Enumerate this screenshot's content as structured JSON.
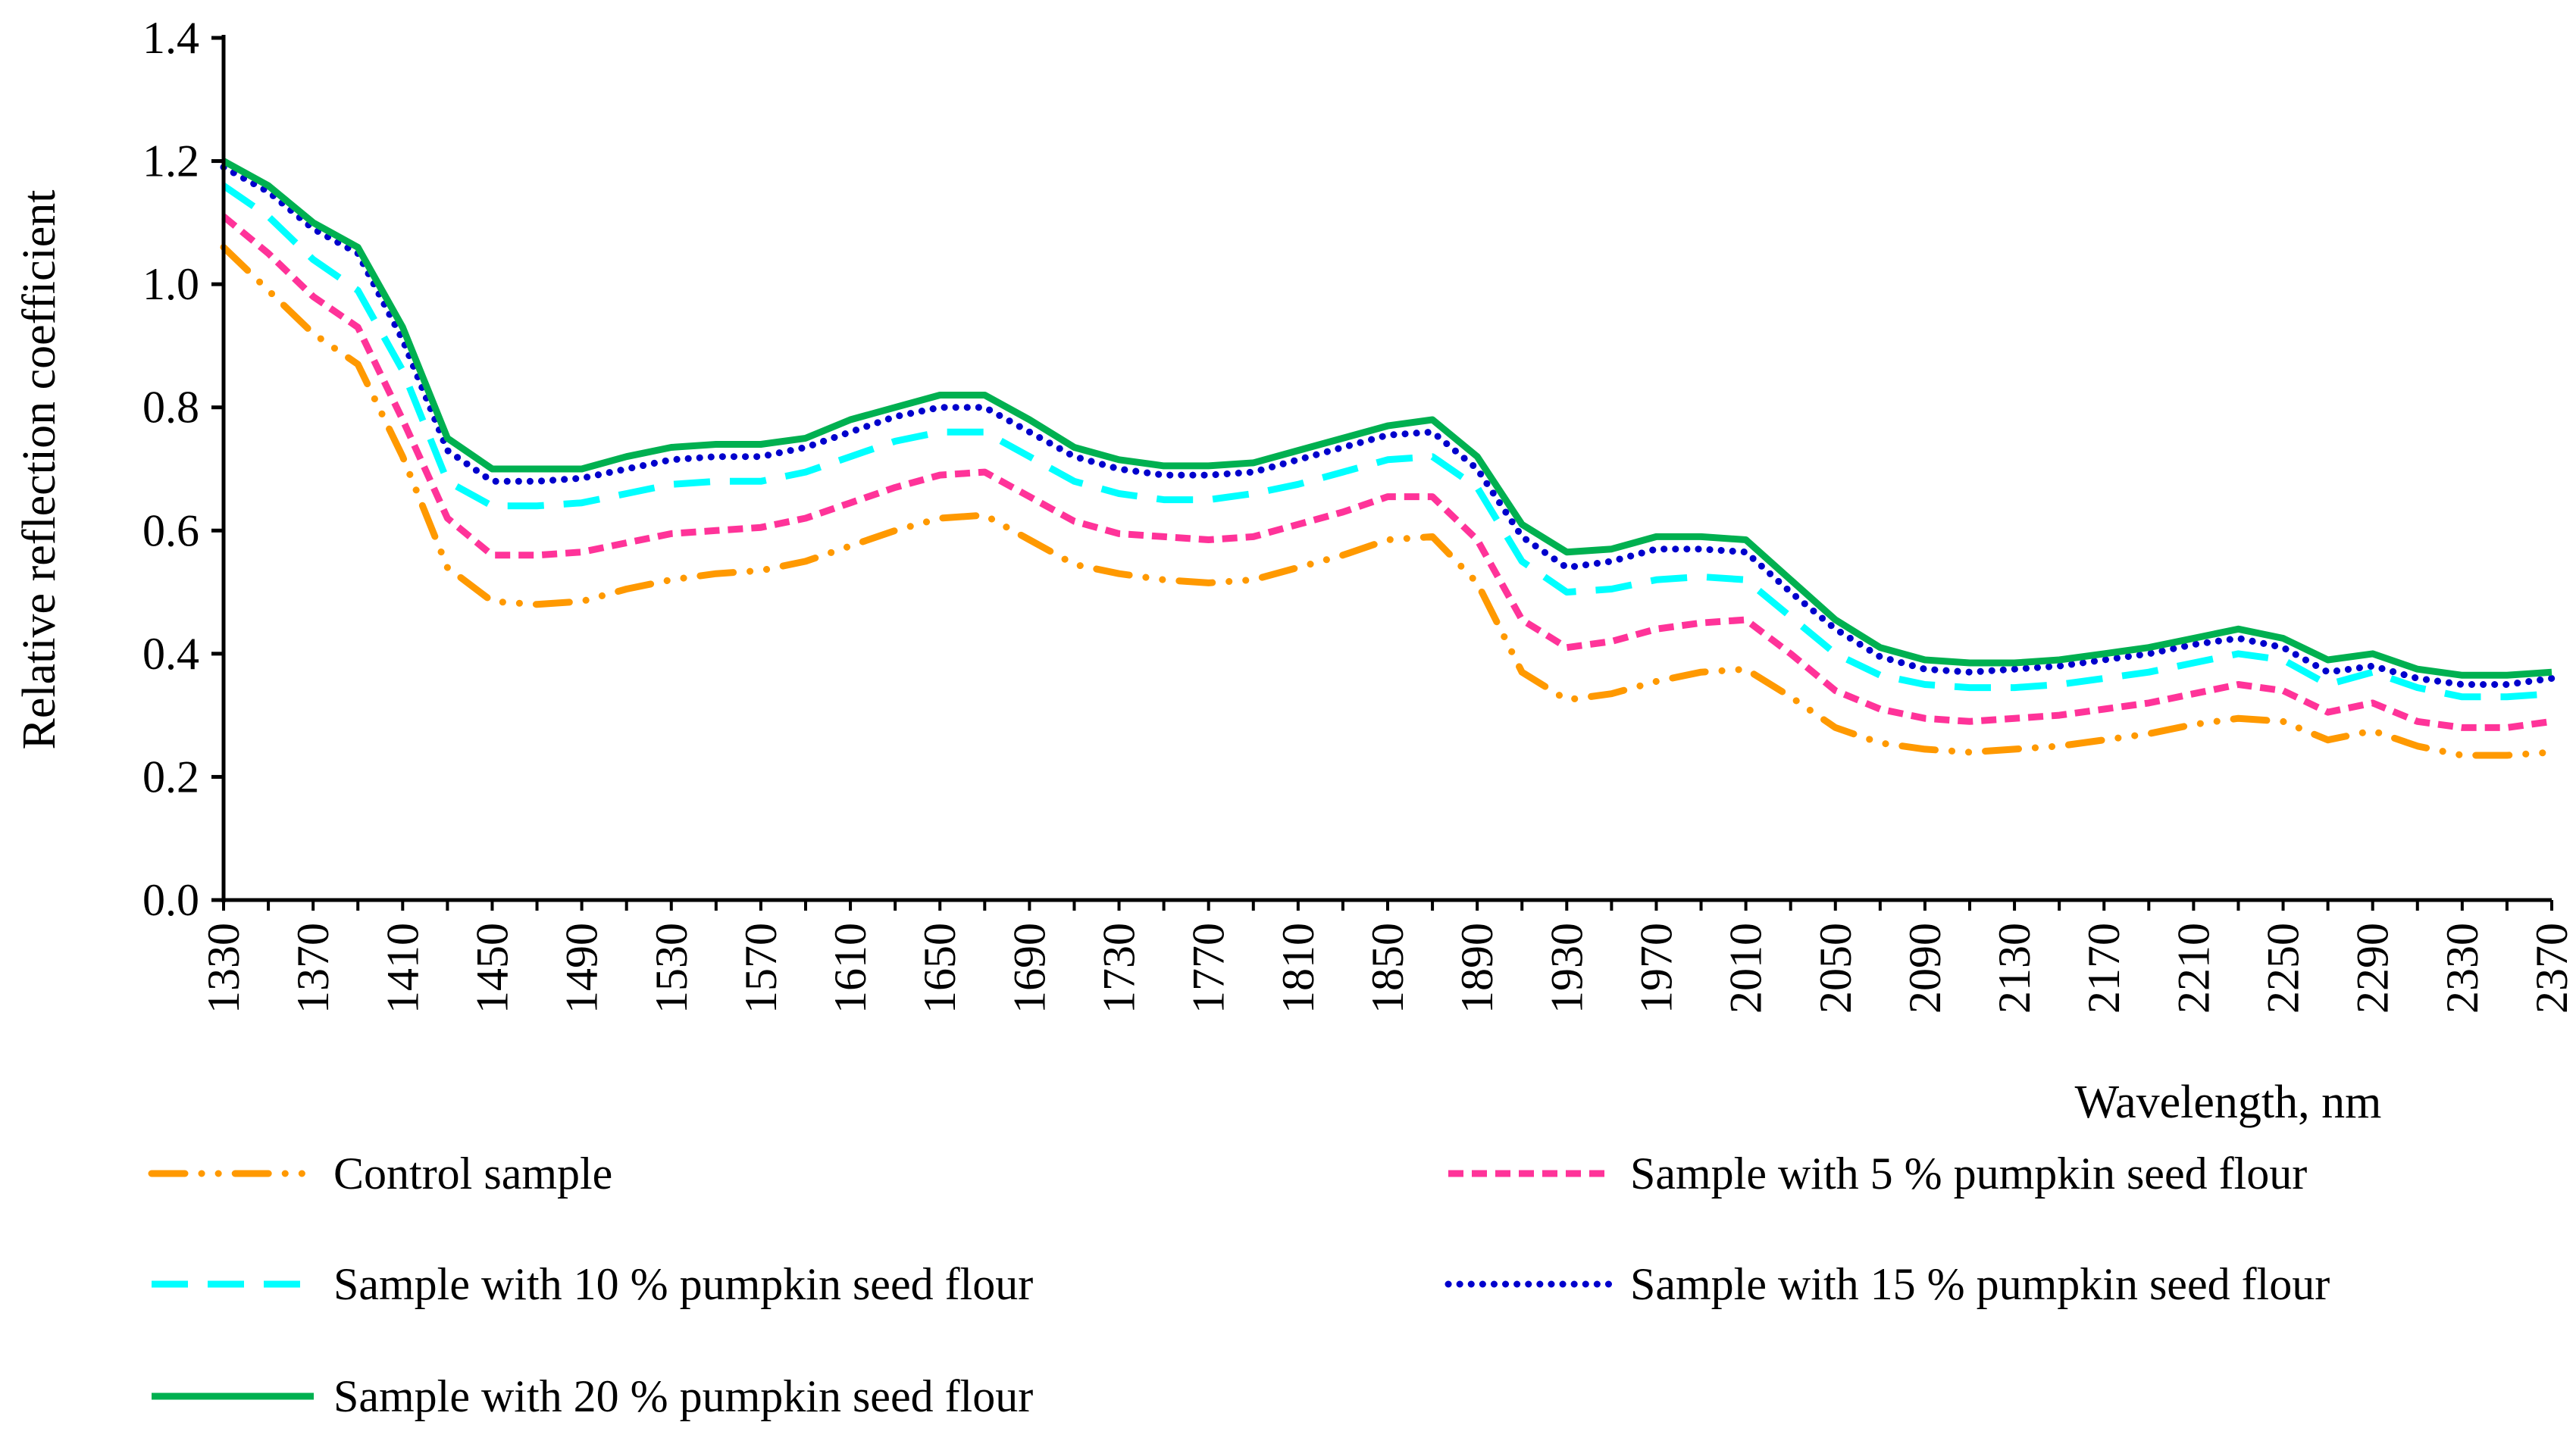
{
  "chart_data": {
    "type": "line",
    "title": "",
    "xlabel": "Wavelength, nm",
    "ylabel": "Relative reflection coefficient",
    "xlim": [
      1330,
      2370
    ],
    "ylim": [
      0,
      1.4
    ],
    "grid": false,
    "legend_position": "bottom",
    "y_ticks": [
      "0.0",
      "0.2",
      "0.4",
      "0.6",
      "0.8",
      "1.0",
      "1.2",
      "1.4"
    ],
    "x_tick_labels": [
      "1330",
      "1370",
      "1410",
      "1450",
      "1490",
      "1530",
      "1570",
      "1610",
      "1650",
      "1690",
      "1730",
      "1770",
      "1810",
      "1850",
      "1890",
      "1930",
      "1970",
      "2010",
      "2050",
      "2090",
      "2130",
      "2170",
      "2210",
      "2250",
      "2290",
      "2330",
      "2370"
    ],
    "x": [
      1330,
      1350,
      1370,
      1390,
      1410,
      1430,
      1450,
      1470,
      1490,
      1510,
      1530,
      1550,
      1570,
      1590,
      1610,
      1630,
      1650,
      1670,
      1690,
      1710,
      1730,
      1750,
      1770,
      1790,
      1810,
      1830,
      1850,
      1870,
      1890,
      1910,
      1930,
      1950,
      1970,
      1990,
      2010,
      2030,
      2050,
      2070,
      2090,
      2110,
      2130,
      2150,
      2170,
      2190,
      2210,
      2230,
      2250,
      2270,
      2290,
      2310,
      2330,
      2350,
      2370
    ],
    "series": [
      {
        "name": "Control sample",
        "color": "#FF9900",
        "style": "dash-dot-dot",
        "values": [
          1.06,
          0.99,
          0.92,
          0.87,
          0.72,
          0.54,
          0.485,
          0.48,
          0.485,
          0.505,
          0.52,
          0.53,
          0.535,
          0.55,
          0.575,
          0.6,
          0.62,
          0.625,
          0.585,
          0.545,
          0.53,
          0.52,
          0.515,
          0.52,
          0.54,
          0.56,
          0.585,
          0.59,
          0.515,
          0.37,
          0.325,
          0.335,
          0.355,
          0.37,
          0.375,
          0.33,
          0.28,
          0.255,
          0.245,
          0.24,
          0.245,
          0.25,
          0.26,
          0.27,
          0.285,
          0.295,
          0.29,
          0.26,
          0.275,
          0.25,
          0.235,
          0.235,
          0.24
        ]
      },
      {
        "name": "Sample with 5 % pumpkin seed flour",
        "color": "#FF3399",
        "style": "short-dash",
        "values": [
          1.11,
          1.05,
          0.98,
          0.93,
          0.78,
          0.62,
          0.56,
          0.56,
          0.565,
          0.58,
          0.595,
          0.6,
          0.605,
          0.62,
          0.645,
          0.67,
          0.69,
          0.695,
          0.655,
          0.615,
          0.595,
          0.59,
          0.585,
          0.59,
          0.61,
          0.63,
          0.655,
          0.655,
          0.585,
          0.455,
          0.41,
          0.42,
          0.44,
          0.45,
          0.455,
          0.4,
          0.34,
          0.31,
          0.295,
          0.29,
          0.295,
          0.3,
          0.31,
          0.32,
          0.335,
          0.35,
          0.34,
          0.305,
          0.32,
          0.29,
          0.28,
          0.28,
          0.29
        ]
      },
      {
        "name": "Sample with 10 % pumpkin seed flour",
        "color": "#00FFFF",
        "style": "long-dash",
        "values": [
          1.16,
          1.11,
          1.04,
          0.99,
          0.86,
          0.68,
          0.64,
          0.64,
          0.645,
          0.66,
          0.675,
          0.68,
          0.68,
          0.695,
          0.72,
          0.745,
          0.76,
          0.76,
          0.72,
          0.68,
          0.66,
          0.65,
          0.65,
          0.66,
          0.675,
          0.695,
          0.715,
          0.72,
          0.67,
          0.55,
          0.5,
          0.505,
          0.52,
          0.525,
          0.52,
          0.46,
          0.4,
          0.365,
          0.35,
          0.345,
          0.345,
          0.35,
          0.36,
          0.37,
          0.385,
          0.4,
          0.39,
          0.35,
          0.37,
          0.345,
          0.33,
          0.33,
          0.335
        ]
      },
      {
        "name": "Sample with 15 % pumpkin seed flour",
        "color": "#0000CC",
        "style": "dotted",
        "values": [
          1.19,
          1.15,
          1.09,
          1.05,
          0.91,
          0.73,
          0.68,
          0.68,
          0.685,
          0.7,
          0.715,
          0.72,
          0.72,
          0.735,
          0.76,
          0.785,
          0.8,
          0.8,
          0.76,
          0.72,
          0.7,
          0.69,
          0.69,
          0.695,
          0.715,
          0.735,
          0.755,
          0.76,
          0.7,
          0.59,
          0.54,
          0.55,
          0.57,
          0.57,
          0.565,
          0.5,
          0.44,
          0.395,
          0.375,
          0.37,
          0.375,
          0.38,
          0.39,
          0.4,
          0.415,
          0.425,
          0.41,
          0.37,
          0.38,
          0.36,
          0.35,
          0.35,
          0.36
        ]
      },
      {
        "name": "Sample with 20 % pumpkin seed flour",
        "color": "#00B050",
        "style": "solid",
        "values": [
          1.2,
          1.16,
          1.1,
          1.06,
          0.93,
          0.75,
          0.7,
          0.7,
          0.7,
          0.72,
          0.735,
          0.74,
          0.74,
          0.75,
          0.78,
          0.8,
          0.82,
          0.82,
          0.78,
          0.735,
          0.715,
          0.705,
          0.705,
          0.71,
          0.73,
          0.75,
          0.77,
          0.78,
          0.72,
          0.61,
          0.565,
          0.57,
          0.59,
          0.59,
          0.585,
          0.52,
          0.455,
          0.41,
          0.39,
          0.385,
          0.385,
          0.39,
          0.4,
          0.41,
          0.425,
          0.44,
          0.425,
          0.39,
          0.4,
          0.375,
          0.365,
          0.365,
          0.37
        ]
      }
    ]
  }
}
